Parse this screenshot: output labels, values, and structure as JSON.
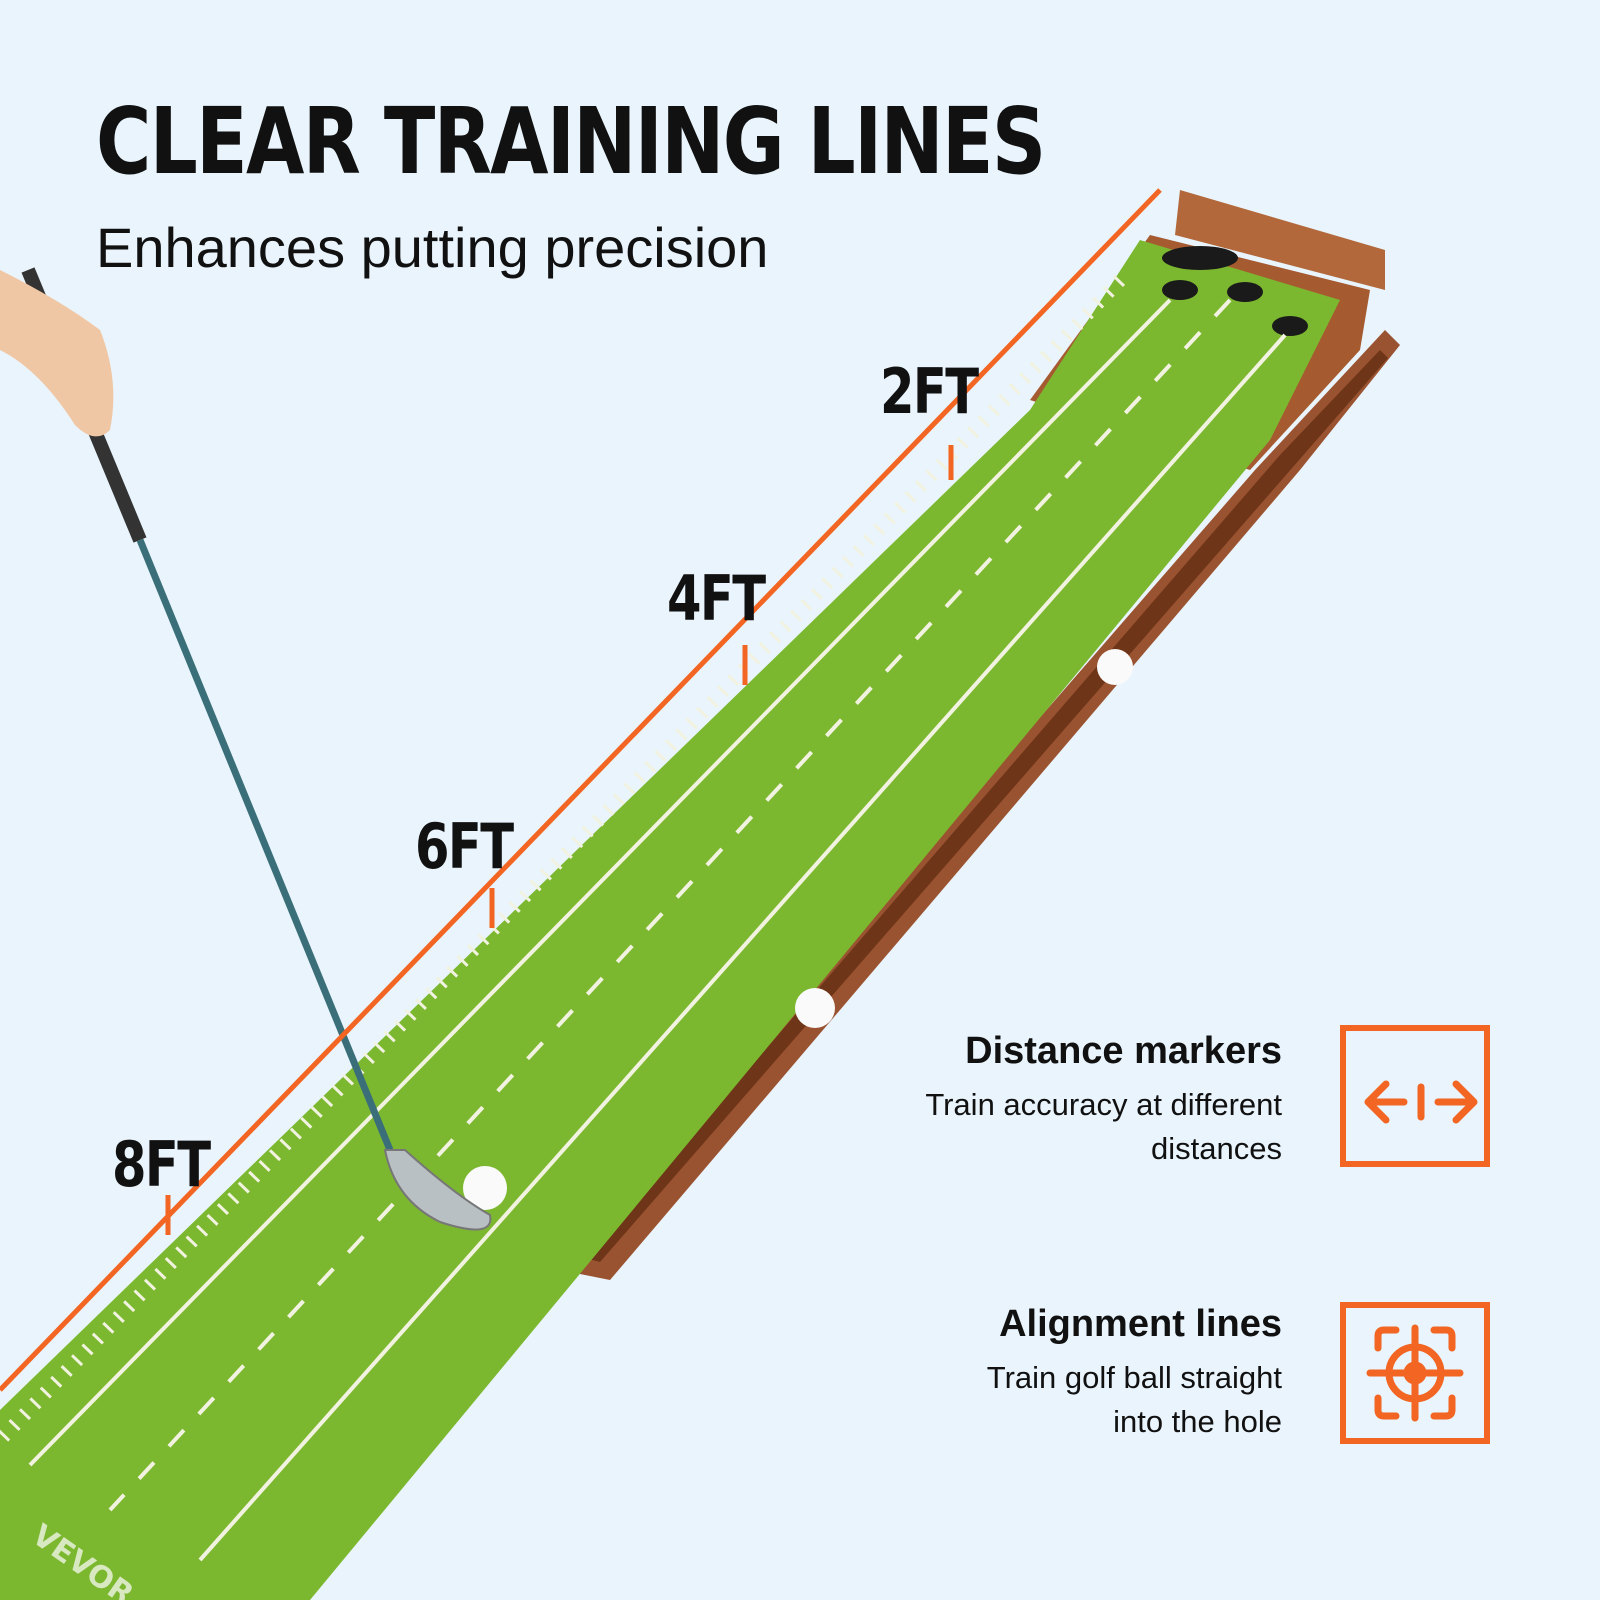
{
  "header": {
    "title": "CLEAR TRAINING LINES",
    "subtitle": "Enhances putting precision"
  },
  "distance_labels": [
    "2FT",
    "4FT",
    "6FT",
    "8FT"
  ],
  "mat_brand": "VEVOR",
  "features": [
    {
      "title": "Distance markers",
      "description": "Train accuracy at different distances",
      "icon": "distance-arrows-icon"
    },
    {
      "title": "Alignment lines",
      "description": "Train golf ball straight into the hole",
      "icon": "target-crosshair-icon"
    }
  ],
  "colors": {
    "accent": "#f26522",
    "background": "#e9f4fc",
    "turf": "#7cb82f",
    "wood": "#8a4a2a"
  }
}
